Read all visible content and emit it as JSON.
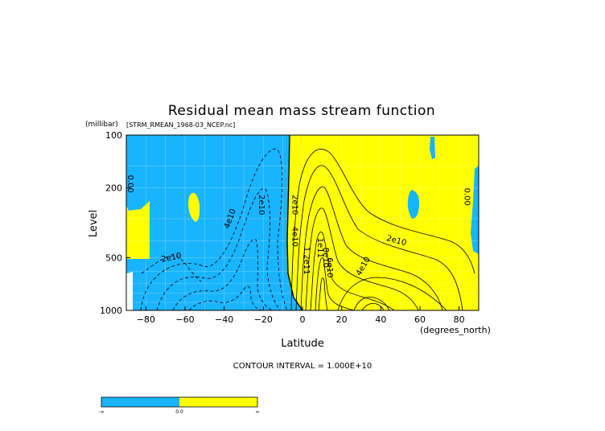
{
  "chart_data": {
    "type": "heatmap",
    "title": "Residual mean mass stream function",
    "subtitle": "[STRM_RMEAN_1968-03_NCEP.nc]",
    "ylabel": "Level",
    "yunit": "(millibar)",
    "xlabel": "Latitude",
    "xunit": "(degrees_north)",
    "xlim": [
      -90,
      90
    ],
    "ylim": [
      1000,
      100
    ],
    "yscale": "log",
    "x_ticks": [
      -80,
      -60,
      -40,
      -20,
      0,
      20,
      40,
      60,
      80
    ],
    "y_ticks": [
      100,
      200,
      500,
      1000
    ],
    "x_tick_labels": [
      "−80",
      "−60",
      "−40",
      "−20",
      "0",
      "20",
      "40",
      "60",
      "80"
    ],
    "y_tick_labels": [
      "100",
      "200",
      "500",
      "1000"
    ],
    "contour_interval_text": "CONTOUR INTERVAL = 1.000E+10",
    "contour_labels": [
      {
        "text": "0.00",
        "x": -88,
        "y": 190,
        "rotate": 90
      },
      {
        "text": "0.00",
        "x": 84,
        "y": 225,
        "rotate": 90
      },
      {
        "text": "2e10",
        "x": -21,
        "y": 250,
        "rotate": 90
      },
      {
        "text": "4e10",
        "x": -37,
        "y": 300,
        "rotate": -70
      },
      {
        "text": "2e10",
        "x": -67,
        "y": 500,
        "rotate": -12
      },
      {
        "text": "2e10",
        "x": -4,
        "y": 250,
        "rotate": 90
      },
      {
        "text": "4e10",
        "x": -4,
        "y": 380,
        "rotate": 90
      },
      {
        "text": "1.2e11",
        "x": 2,
        "y": 520,
        "rotate": 90
      },
      {
        "text": "1e11",
        "x": 9,
        "y": 440,
        "rotate": 90
      },
      {
        "text": "8e10",
        "x": 12,
        "y": 500,
        "rotate": 90
      },
      {
        "text": "6e10",
        "x": 14,
        "y": 570,
        "rotate": 90
      },
      {
        "text": "4e10",
        "x": 31,
        "y": 560,
        "rotate": -60
      },
      {
        "text": "2e10",
        "x": 48,
        "y": 400,
        "rotate": 15
      }
    ],
    "color_regions": [
      {
        "label": "negative",
        "color": "#19b4ff"
      },
      {
        "label": "positive",
        "color": "#ffff00"
      }
    ],
    "colorbar": {
      "tick_labels": [
        "-∞",
        "0.0",
        "∞"
      ],
      "colors": [
        "#19b4ff",
        "#ffff00"
      ]
    }
  }
}
